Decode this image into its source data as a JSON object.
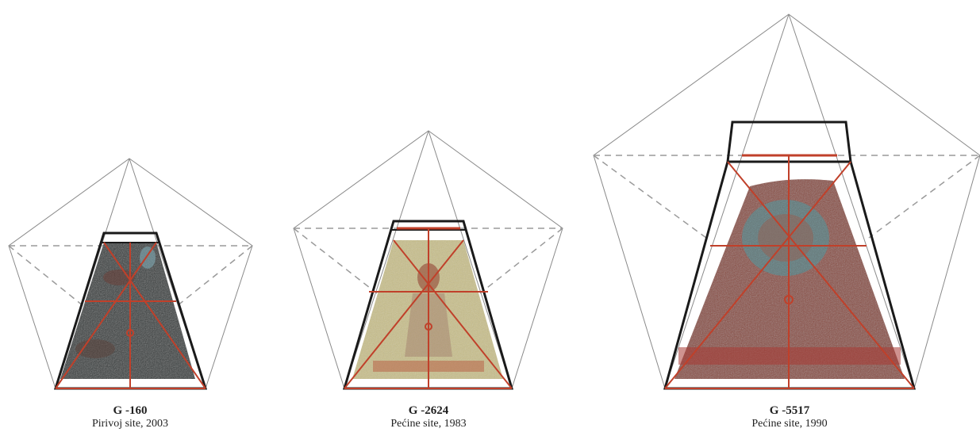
{
  "figures": [
    {
      "id": "G -160",
      "site": "Pirivoj site, 2003",
      "texture": {
        "base": "#2f3436",
        "tint": "#4a3a36",
        "accent": "#7a3b30"
      }
    },
    {
      "id": "G -2624",
      "site": "Pećine site, 1983",
      "texture": {
        "base": "#c9c08a",
        "tint": "#d8cf9a",
        "accent": "#8e3a2c"
      }
    },
    {
      "id": "G -5517",
      "site": "Pećine site, 1990",
      "texture": {
        "base": "#8a4a3e",
        "tint": "#9b5a4c",
        "accent": "#3fa3b0"
      }
    }
  ],
  "colors": {
    "construction_line": "#8a8a8a",
    "dashed_line": "#9a9a9a",
    "frame": "#1a1a1a",
    "axis": "#c0402a"
  }
}
